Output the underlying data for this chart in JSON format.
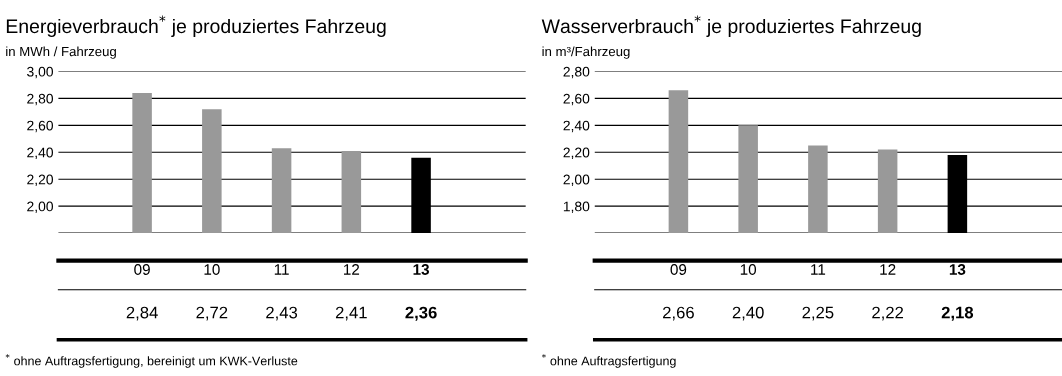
{
  "chart_data": [
    {
      "type": "bar",
      "title": "Energieverbrauch$^{*}$ je produziertes Fahrzeug",
      "ylabel": "in MWh / Fahrzeug",
      "categories": [
        "09",
        "10",
        "11",
        "12",
        "13"
      ],
      "values": [
        2.84,
        2.72,
        2.43,
        2.41,
        2.36
      ],
      "colors": [
        "#999999",
        "#999999",
        "#999999",
        "#999999",
        "#000000"
      ],
      "value_labels": [
        "2,84",
        "2,72",
        "2,43",
        "2,41",
        "2,36"
      ],
      "ylim": [
        1.8,
        3.0
      ],
      "yticks": [
        {
          "value": 2.0,
          "label": "2,00"
        },
        {
          "value": 2.2,
          "label": "2,20"
        },
        {
          "value": 2.4,
          "label": "2,40"
        },
        {
          "value": 2.6,
          "label": "2,60"
        },
        {
          "value": 2.8,
          "label": "2,80"
        },
        {
          "value": 3.0,
          "label": "3,00"
        }
      ],
      "grid": "y",
      "annotations": [
        "$^{*}$ ohne Auftragsfertigung, bereinigt um KWK-Verluste"
      ]
    },
    {
      "type": "bar",
      "title": "Wasserverbrauch$^{*}$ je produziertes Fahrzeug",
      "ylabel": "in m³/Fahrzeug",
      "categories": [
        "09",
        "10",
        "11",
        "12",
        "13"
      ],
      "values": [
        2.66,
        2.4,
        2.25,
        2.22,
        2.18
      ],
      "colors": [
        "#999999",
        "#999999",
        "#999999",
        "#999999",
        "#000000"
      ],
      "value_labels": [
        "2,66",
        "2,40",
        "2,25",
        "2,22",
        "2,18"
      ],
      "ylim": [
        1.6,
        2.8
      ],
      "yticks": [
        {
          "value": 1.8,
          "label": "1,80"
        },
        {
          "value": 2.0,
          "label": "2,00"
        },
        {
          "value": 2.2,
          "label": "2,20"
        },
        {
          "value": 2.4,
          "label": "2,40"
        },
        {
          "value": 2.6,
          "label": "2,60"
        },
        {
          "value": 2.8,
          "label": "2,80"
        }
      ],
      "grid": "y",
      "annotations": [
        "$^{*}$ ohne Auftragsfertigung"
      ]
    }
  ]
}
